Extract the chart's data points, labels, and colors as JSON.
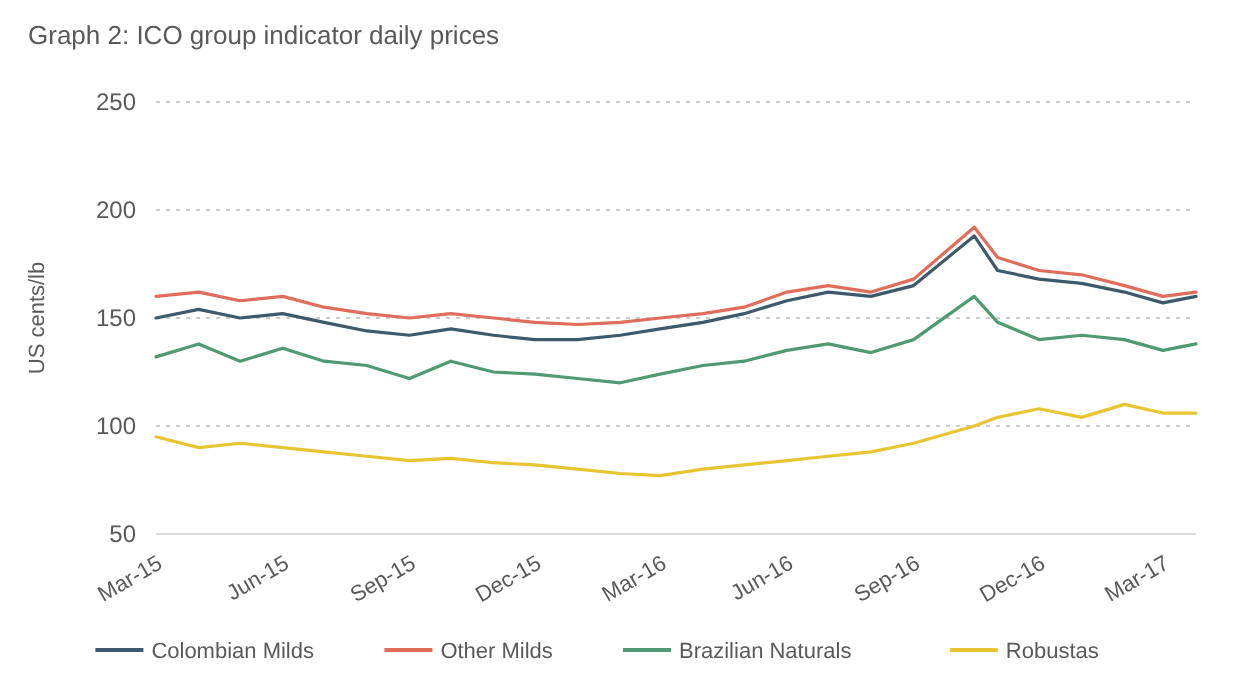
{
  "chart_data": {
    "type": "line",
    "title": "Graph 2: ICO group indicator daily prices",
    "ylabel": "US cents/lb",
    "x": [
      "2015-03-01",
      "2015-04-01",
      "2015-05-01",
      "2015-06-01",
      "2015-07-01",
      "2015-08-01",
      "2015-09-01",
      "2015-10-01",
      "2015-11-01",
      "2015-12-01",
      "2016-01-01",
      "2016-02-01",
      "2016-03-01",
      "2016-04-01",
      "2016-05-01",
      "2016-06-01",
      "2016-07-01",
      "2016-08-01",
      "2016-09-01",
      "2016-10-15",
      "2016-11-01",
      "2016-12-01",
      "2017-01-01",
      "2017-02-01",
      "2017-03-01",
      "2017-03-25"
    ],
    "series": [
      {
        "name": "Colombian Milds",
        "color": "#3d5a6c",
        "values": [
          150,
          154,
          150,
          152,
          148,
          144,
          142,
          145,
          142,
          140,
          140,
          142,
          145,
          148,
          152,
          158,
          162,
          160,
          165,
          188,
          172,
          168,
          166,
          162,
          157,
          160
        ]
      },
      {
        "name": "Other Milds",
        "color": "#e06c5a",
        "values": [
          160,
          162,
          158,
          160,
          155,
          152,
          150,
          152,
          150,
          148,
          147,
          148,
          150,
          152,
          155,
          162,
          165,
          162,
          168,
          192,
          178,
          172,
          170,
          165,
          160,
          162
        ]
      },
      {
        "name": "Brazilian Naturals",
        "color": "#4f9a72",
        "values": [
          132,
          138,
          130,
          136,
          130,
          128,
          122,
          130,
          125,
          124,
          122,
          120,
          124,
          128,
          130,
          135,
          138,
          134,
          140,
          160,
          148,
          140,
          142,
          140,
          135,
          138
        ]
      },
      {
        "name": "Robustas",
        "color": "#e8c530",
        "values": [
          95,
          90,
          92,
          90,
          88,
          86,
          84,
          85,
          83,
          82,
          80,
          78,
          77,
          80,
          82,
          84,
          86,
          88,
          92,
          100,
          104,
          108,
          104,
          110,
          106,
          106
        ]
      }
    ],
    "xlim": [
      "2015-03-01",
      "2017-03-25"
    ],
    "xticks": [
      {
        "value": "2015-03-01",
        "label": "Mar-15"
      },
      {
        "value": "2015-06-01",
        "label": "Jun-15"
      },
      {
        "value": "2015-09-01",
        "label": "Sep-15"
      },
      {
        "value": "2015-12-01",
        "label": "Dec-15"
      },
      {
        "value": "2016-03-01",
        "label": "Mar-16"
      },
      {
        "value": "2016-06-01",
        "label": "Jun-16"
      },
      {
        "value": "2016-09-01",
        "label": "Sep-16"
      },
      {
        "value": "2016-12-01",
        "label": "Dec-16"
      },
      {
        "value": "2017-03-01",
        "label": "Mar-17"
      }
    ],
    "ylim": [
      50,
      250
    ],
    "yticks": [
      50,
      100,
      150,
      200,
      250
    ],
    "grid": "y",
    "legend": "bottom",
    "marker": "none",
    "line_style": "solid"
  }
}
